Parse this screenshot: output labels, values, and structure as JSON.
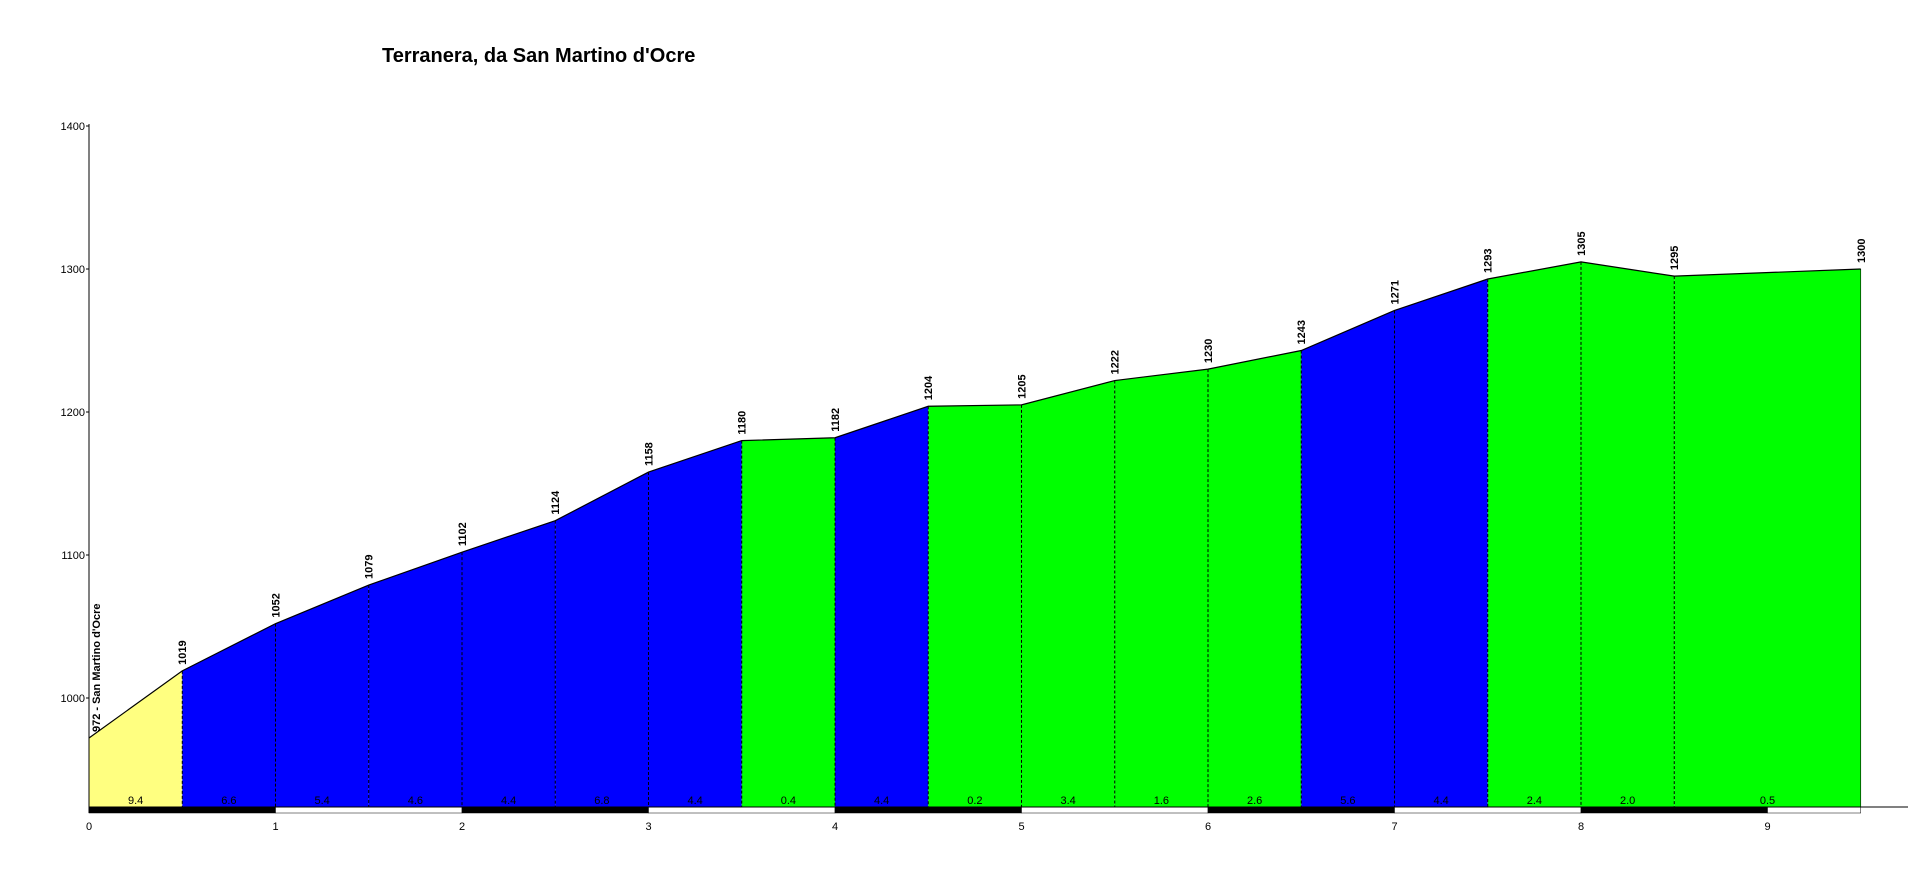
{
  "chart_data": {
    "type": "area",
    "title": "Terranera, da San Martino d'Ocre",
    "start_label": "972 - San Martino d'Ocre",
    "x_ticks": [
      "0",
      "1",
      "2",
      "3",
      "4",
      "5",
      "6",
      "7",
      "8",
      "9"
    ],
    "y_ticks": [
      "1000",
      "1100",
      "1200",
      "1300",
      "1400"
    ],
    "xlim": [
      0,
      9.5
    ],
    "ylim": [
      922,
      1400
    ],
    "grid": false,
    "points": [
      {
        "km": 0.0,
        "elev": 972
      },
      {
        "km": 0.5,
        "elev": 1019
      },
      {
        "km": 1.0,
        "elev": 1052
      },
      {
        "km": 1.5,
        "elev": 1079
      },
      {
        "km": 2.0,
        "elev": 1102
      },
      {
        "km": 2.5,
        "elev": 1124
      },
      {
        "km": 3.0,
        "elev": 1158
      },
      {
        "km": 3.5,
        "elev": 1180
      },
      {
        "km": 4.0,
        "elev": 1182
      },
      {
        "km": 4.5,
        "elev": 1204
      },
      {
        "km": 5.0,
        "elev": 1205
      },
      {
        "km": 5.5,
        "elev": 1222
      },
      {
        "km": 6.0,
        "elev": 1230
      },
      {
        "km": 6.5,
        "elev": 1243
      },
      {
        "km": 7.0,
        "elev": 1271
      },
      {
        "km": 7.5,
        "elev": 1293
      },
      {
        "km": 8.0,
        "elev": 1305
      },
      {
        "km": 8.5,
        "elev": 1295
      },
      {
        "km": 9.5,
        "elev": 1300
      }
    ],
    "elevation_labels": [
      "1019",
      "1052",
      "1079",
      "1102",
      "1124",
      "1158",
      "1180",
      "1182",
      "1204",
      "1205",
      "1222",
      "1230",
      "1243",
      "1271",
      "1293",
      "1305",
      "1295",
      "1300"
    ],
    "gradient_labels": [
      "9.4",
      "6.6",
      "5.4",
      "4.6",
      "4.4",
      "6.8",
      "4.4",
      "0.4",
      "4.4",
      "0.2",
      "3.4",
      "1.6",
      "2.6",
      "5.6",
      "4.4",
      "2.4",
      "2.0",
      "0.5"
    ],
    "colors": {
      "yellow": "#ffff80",
      "blue": "#0000ff",
      "green": "#00ff00",
      "axis": "#000000",
      "band_dark": "#000000",
      "band_light": "#ffffff"
    },
    "segment_colors": [
      "yellow",
      "blue",
      "blue",
      "blue",
      "blue",
      "blue",
      "blue",
      "green",
      "blue",
      "green",
      "green",
      "green",
      "green",
      "blue",
      "blue",
      "green",
      "green",
      "green"
    ],
    "bands": [
      {
        "from_km": 0,
        "to_km": 1,
        "fill": "band_dark"
      },
      {
        "from_km": 1,
        "to_km": 2,
        "fill": "band_light"
      },
      {
        "from_km": 2,
        "to_km": 3,
        "fill": "band_dark"
      },
      {
        "from_km": 3,
        "to_km": 4,
        "fill": "band_light"
      },
      {
        "from_km": 4,
        "to_km": 5,
        "fill": "band_dark"
      },
      {
        "from_km": 5,
        "to_km": 6,
        "fill": "band_light"
      },
      {
        "from_km": 6,
        "to_km": 7,
        "fill": "band_dark"
      },
      {
        "from_km": 7,
        "to_km": 8,
        "fill": "band_light"
      },
      {
        "from_km": 8,
        "to_km": 9,
        "fill": "band_dark"
      },
      {
        "from_km": 9,
        "to_km": 9.5,
        "fill": "band_light"
      }
    ]
  }
}
